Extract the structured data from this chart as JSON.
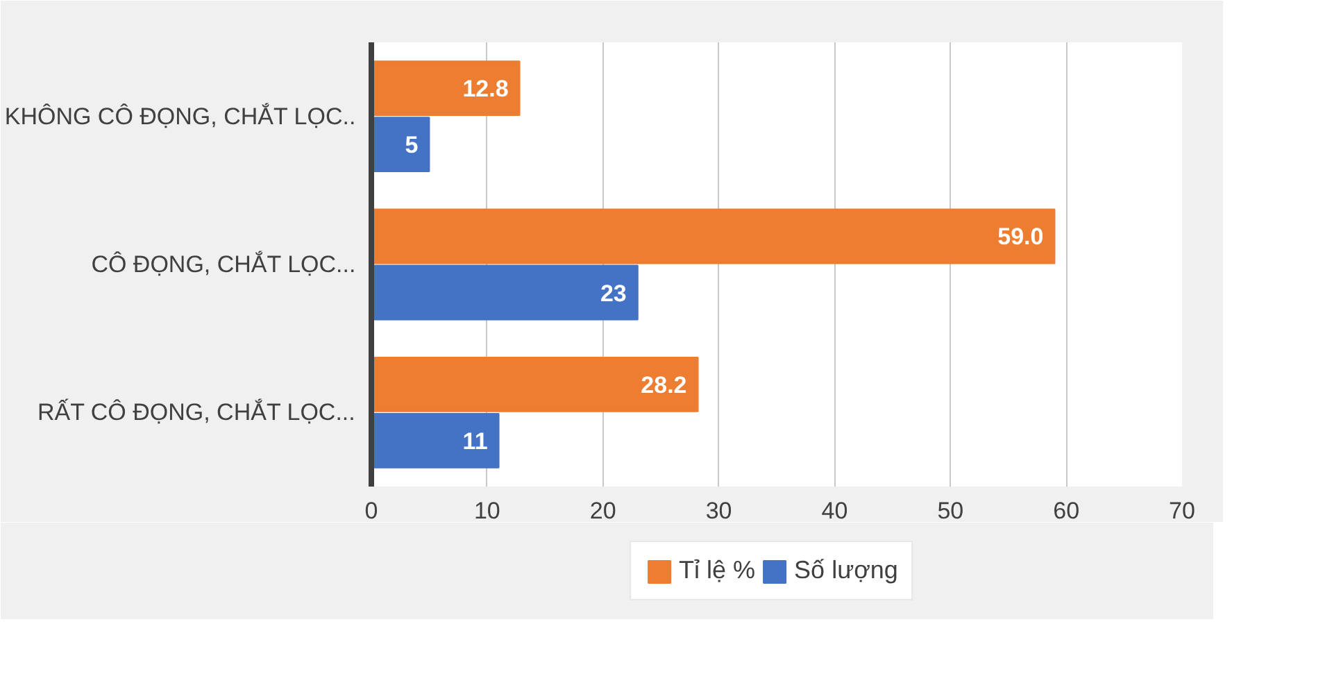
{
  "chart_data": {
    "type": "bar",
    "orientation": "horizontal",
    "categories": [
      "KHÔNG CÔ ĐỌNG, CHẮT LỌC..",
      "CÔ ĐỌNG, CHẮT LỌC...",
      "RẤT CÔ ĐỌNG, CHẮT LỌC..."
    ],
    "series": [
      {
        "name": "Tỉ lệ %",
        "color": "#ed7d31",
        "values": [
          12.8,
          59.0,
          28.2
        ],
        "value_labels": [
          "12.8",
          "59.0",
          "28.2"
        ]
      },
      {
        "name": "Số lượng",
        "color": "#4472c4",
        "values": [
          5,
          23,
          11
        ],
        "value_labels": [
          "5",
          "23",
          "11"
        ]
      }
    ],
    "xlim": [
      0,
      70
    ],
    "xticks": [
      0,
      10,
      20,
      30,
      40,
      50,
      60,
      70
    ],
    "grid": "x",
    "legend": "bottom"
  }
}
